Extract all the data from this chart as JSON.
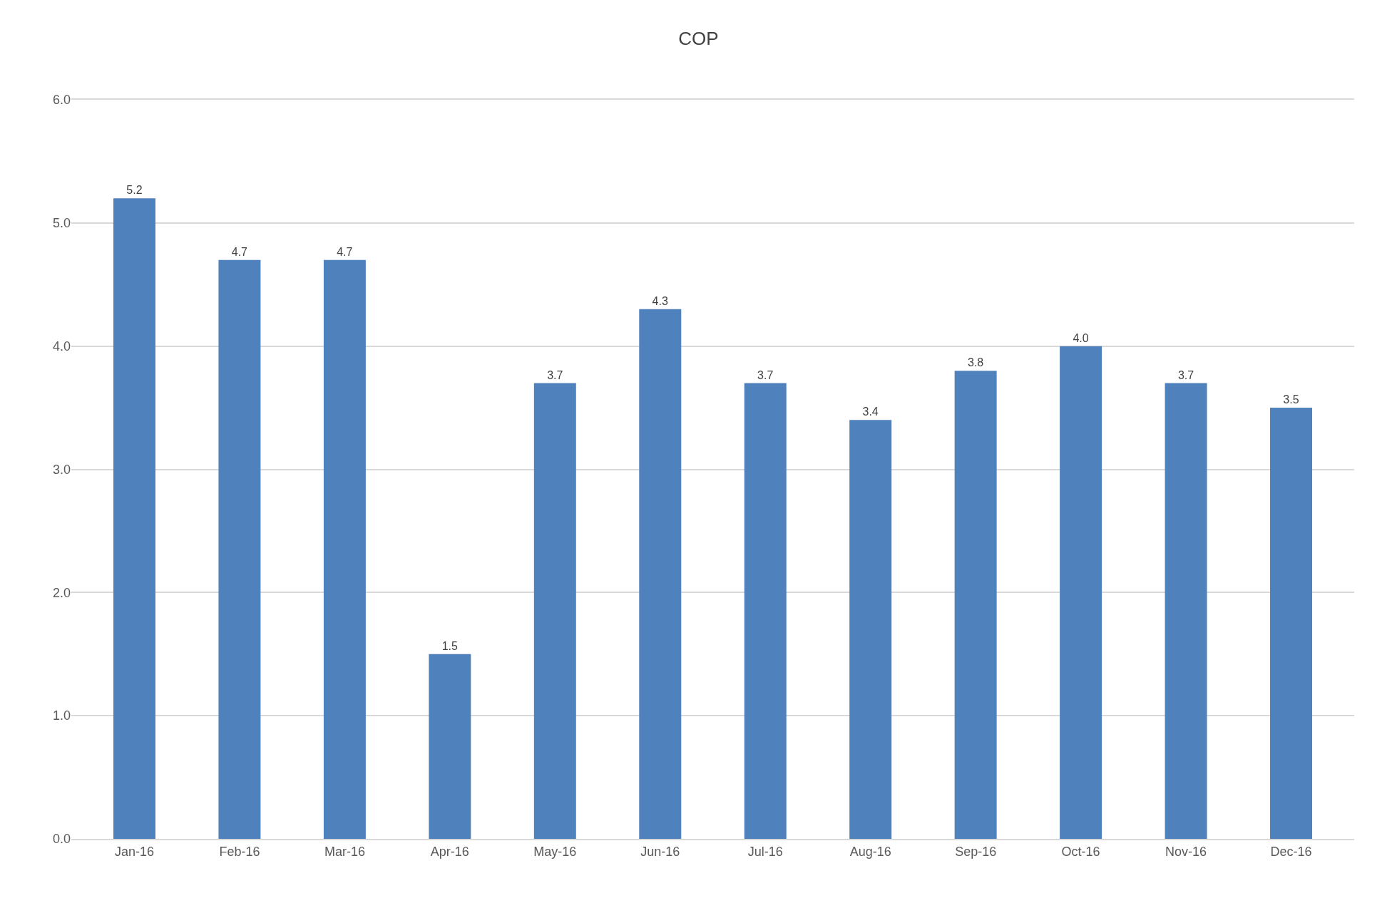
{
  "chart_data": {
    "type": "bar",
    "title": "COP",
    "categories": [
      "Jan-16",
      "Feb-16",
      "Mar-16",
      "Apr-16",
      "May-16",
      "Jun-16",
      "Jul-16",
      "Aug-16",
      "Sep-16",
      "Oct-16",
      "Nov-16",
      "Dec-16"
    ],
    "values": [
      5.2,
      4.7,
      4.7,
      1.5,
      3.7,
      4.3,
      3.7,
      3.4,
      3.8,
      4.0,
      3.7,
      3.5
    ],
    "value_labels": [
      "5.2",
      "4.7",
      "4.7",
      "1.5",
      "3.7",
      "4.3",
      "3.7",
      "3.4",
      "3.8",
      "4.0",
      "3.7",
      "3.5"
    ],
    "color": "#4f81bd",
    "ylim": [
      0,
      6
    ],
    "yticks": [
      {
        "value": 0,
        "label": "0.0"
      },
      {
        "value": 1,
        "label": "1.0"
      },
      {
        "value": 2,
        "label": "2.0"
      },
      {
        "value": 3,
        "label": "3.0"
      },
      {
        "value": 4,
        "label": "4.0"
      },
      {
        "value": 5,
        "label": "5.0"
      },
      {
        "value": 6,
        "label": "6.0"
      }
    ],
    "grid": "y"
  }
}
